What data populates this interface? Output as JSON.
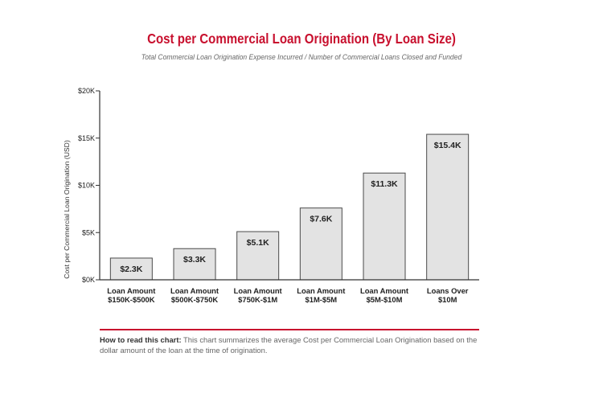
{
  "chart_data": {
    "type": "bar",
    "title": "Cost per Commercial Loan Origination (By Loan Size)",
    "subtitle": "Total Commercial Loan Origination Expense Incurred / Number of Commercial Loans Closed and Funded",
    "ylabel": "Cost per Commercial Loan Origination (USD)",
    "xlabel": "",
    "ylim": [
      0,
      20000
    ],
    "yticks": [
      {
        "value": 0,
        "label": "$0K"
      },
      {
        "value": 5000,
        "label": "$5K"
      },
      {
        "value": 10000,
        "label": "$10K"
      },
      {
        "value": 15000,
        "label": "$15K"
      },
      {
        "value": 20000,
        "label": "$20K"
      }
    ],
    "categories": [
      [
        "Loan Amount",
        "$150K-$500K"
      ],
      [
        "Loan Amount",
        "$500K-$750K"
      ],
      [
        "Loan Amount",
        "$750K-$1M"
      ],
      [
        "Loan Amount",
        "$1M-$5M"
      ],
      [
        "Loan Amount",
        "$5M-$10M"
      ],
      [
        "Loans Over",
        "$10M"
      ]
    ],
    "values": [
      2300,
      3300,
      5100,
      7600,
      11300,
      15400
    ],
    "data_labels": [
      "$2.3K",
      "$3.3K",
      "$5.1K",
      "$7.6K",
      "$11.3K",
      "$15.4K"
    ],
    "grid": false,
    "colors": {
      "bar_fill": "#e3e3e3",
      "bar_stroke": "#4a4a4a",
      "axis": "#333333",
      "title": "#c8102e",
      "text": "#222222"
    }
  },
  "note": {
    "lead": "How to read this chart:",
    "text": "This chart summarizes the average Cost per Commercial Loan Origination based on the dollar amount of the loan at the time of origination."
  }
}
